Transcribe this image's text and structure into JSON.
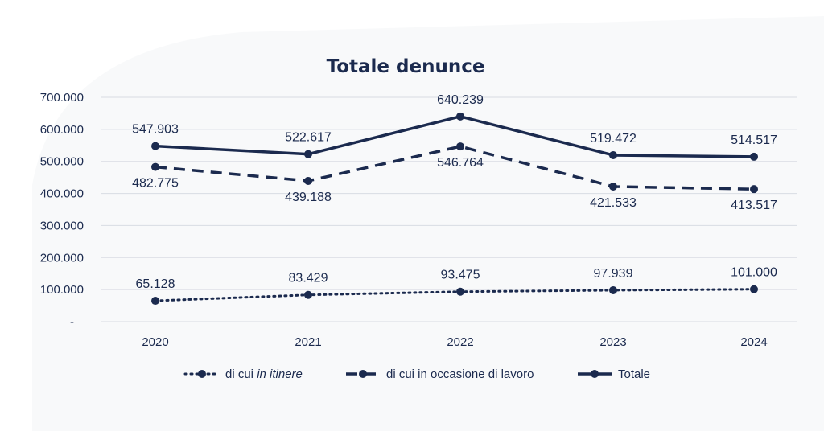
{
  "chart_data": {
    "type": "line",
    "title": "Totale denunce",
    "categories": [
      "2020",
      "2021",
      "2022",
      "2023",
      "2024"
    ],
    "y_ticks": [
      "-",
      "100.000",
      "200.000",
      "300.000",
      "400.000",
      "500.000",
      "600.000",
      "700.000"
    ],
    "ylim": [
      0,
      700000
    ],
    "grid": true,
    "legend_position": "bottom",
    "series": [
      {
        "name_prefix": "di cui ",
        "name_em": "in itinere",
        "style": "dotted",
        "values": [
          65128,
          83429,
          93475,
          97939,
          101000
        ],
        "labels": [
          "65.128",
          "83.429",
          "93.475",
          "97.939",
          "101.000"
        ],
        "label_position": "above"
      },
      {
        "name_prefix": "di cui in occasione di lavoro",
        "name_em": "",
        "style": "dashed",
        "values": [
          482775,
          439188,
          546764,
          421533,
          413517
        ],
        "labels": [
          "482.775",
          "439.188",
          "546.764",
          "421.533",
          "413.517"
        ],
        "label_position": "below"
      },
      {
        "name_prefix": "Totale",
        "name_em": "",
        "style": "solid",
        "values": [
          547903,
          522617,
          640239,
          519472,
          514517
        ],
        "labels": [
          "547.903",
          "522.617",
          "640.239",
          "519.472",
          "514.517"
        ],
        "label_position": "above"
      }
    ],
    "colors": {
      "line": "#1b2a4e",
      "grid": "#d9dce3",
      "background_shape": "#f3f4f6"
    }
  }
}
